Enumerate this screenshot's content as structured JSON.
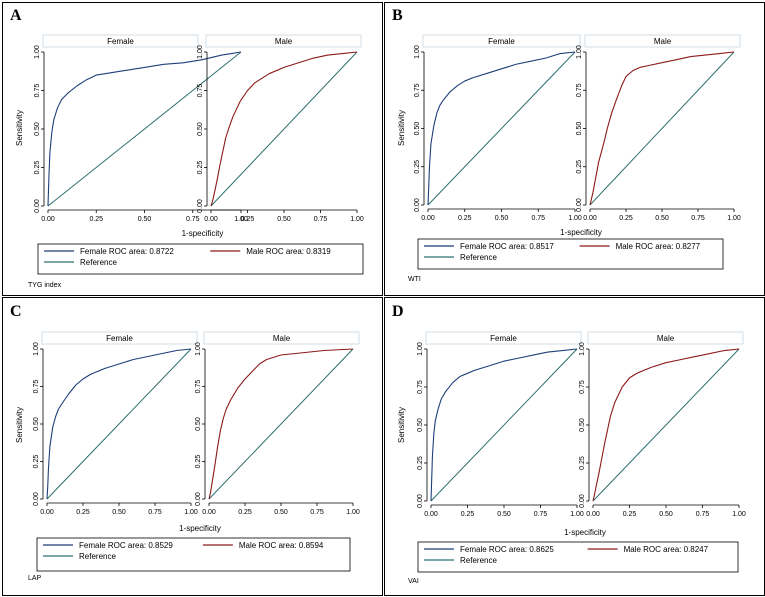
{
  "chart_data": [
    {
      "panel_letter": "A",
      "type": "line",
      "subplots": [
        "Female",
        "Male"
      ],
      "xlabel": "1-specificity",
      "ylabel": "Sensitivity",
      "xlim": [
        0,
        1
      ],
      "ylim": [
        0,
        1
      ],
      "x_ticks": [
        "0.00",
        "0.25",
        "0.50",
        "0.75",
        "1.00"
      ],
      "y_ticks": [
        "0.00",
        "0.25",
        "0.50",
        "0.75",
        "1.00"
      ],
      "note": "TYG index",
      "legend": [
        "Female ROC area: 0.8722",
        "Male ROC area: 0.8319",
        "Reference"
      ],
      "series": [
        {
          "name": "Female",
          "color": "#1f3f7a",
          "auc": 0.8722,
          "x": [
            0,
            0.005,
            0.01,
            0.02,
            0.03,
            0.05,
            0.07,
            0.1,
            0.15,
            0.2,
            0.25,
            0.3,
            0.4,
            0.5,
            0.6,
            0.7,
            0.8,
            0.9,
            0.95,
            1
          ],
          "y": [
            0,
            0.2,
            0.35,
            0.48,
            0.56,
            0.64,
            0.69,
            0.73,
            0.78,
            0.82,
            0.85,
            0.86,
            0.88,
            0.9,
            0.92,
            0.93,
            0.95,
            0.98,
            0.99,
            1
          ]
        },
        {
          "name": "Male",
          "color": "#8b1a1a",
          "auc": 0.8319,
          "x": [
            0,
            0.01,
            0.02,
            0.04,
            0.06,
            0.08,
            0.1,
            0.12,
            0.15,
            0.2,
            0.25,
            0.3,
            0.35,
            0.4,
            0.5,
            0.6,
            0.7,
            0.8,
            0.9,
            1
          ],
          "y": [
            0,
            0.03,
            0.07,
            0.16,
            0.26,
            0.35,
            0.44,
            0.5,
            0.58,
            0.68,
            0.75,
            0.8,
            0.83,
            0.86,
            0.9,
            0.93,
            0.96,
            0.98,
            0.99,
            1
          ]
        },
        {
          "name": "Reference",
          "color": "#2e6f6f",
          "x": [
            0,
            1
          ],
          "y": [
            0,
            1
          ]
        }
      ]
    },
    {
      "panel_letter": "B",
      "type": "line",
      "subplots": [
        "Female",
        "Male"
      ],
      "xlabel": "1-specificity",
      "ylabel": "Sensitivity",
      "xlim": [
        0,
        1
      ],
      "ylim": [
        0,
        1
      ],
      "x_ticks": [
        "0.00",
        "0.25",
        "0.50",
        "0.75",
        "1.00"
      ],
      "y_ticks": [
        "0.00",
        "0.25",
        "0.50",
        "0.75",
        "1.00"
      ],
      "note": "WTI",
      "legend": [
        "Female ROC area: 0.8517",
        "Male ROC area: 0.8277",
        "Reference"
      ],
      "series": [
        {
          "name": "Female",
          "color": "#1f3f7a",
          "auc": 0.8517,
          "x": [
            0,
            0.005,
            0.01,
            0.02,
            0.04,
            0.06,
            0.08,
            0.1,
            0.15,
            0.2,
            0.25,
            0.3,
            0.4,
            0.5,
            0.6,
            0.7,
            0.8,
            0.9,
            1
          ],
          "y": [
            0,
            0.12,
            0.25,
            0.4,
            0.52,
            0.6,
            0.65,
            0.68,
            0.74,
            0.78,
            0.81,
            0.83,
            0.86,
            0.89,
            0.92,
            0.94,
            0.96,
            0.99,
            1
          ]
        },
        {
          "name": "Male",
          "color": "#8b1a1a",
          "auc": 0.8277,
          "x": [
            0,
            0.02,
            0.04,
            0.06,
            0.08,
            0.1,
            0.12,
            0.15,
            0.18,
            0.2,
            0.22,
            0.25,
            0.3,
            0.35,
            0.4,
            0.5,
            0.6,
            0.7,
            0.8,
            0.9,
            1
          ],
          "y": [
            0,
            0.08,
            0.18,
            0.28,
            0.35,
            0.42,
            0.5,
            0.6,
            0.68,
            0.73,
            0.78,
            0.84,
            0.88,
            0.9,
            0.91,
            0.93,
            0.95,
            0.97,
            0.98,
            0.99,
            1
          ]
        },
        {
          "name": "Reference",
          "color": "#2e6f6f",
          "x": [
            0,
            1
          ],
          "y": [
            0,
            1
          ]
        }
      ]
    },
    {
      "panel_letter": "C",
      "type": "line",
      "subplots": [
        "Female",
        "Male"
      ],
      "xlabel": "1-specificity",
      "ylabel": "Sensitivity",
      "xlim": [
        0,
        1
      ],
      "ylim": [
        0,
        1
      ],
      "x_ticks": [
        "0.00",
        "0.25",
        "0.50",
        "0.75",
        "1.00"
      ],
      "y_ticks": [
        "0.00",
        "0.25",
        "0.50",
        "0.75",
        "1.00"
      ],
      "note": "LAP",
      "legend": [
        "Female ROC area: 0.8529",
        "Male ROC area: 0.8594",
        "Reference"
      ],
      "series": [
        {
          "name": "Female",
          "color": "#1f3f7a",
          "auc": 0.8529,
          "x": [
            0,
            0.005,
            0.01,
            0.02,
            0.04,
            0.06,
            0.08,
            0.1,
            0.15,
            0.2,
            0.25,
            0.3,
            0.4,
            0.5,
            0.6,
            0.7,
            0.8,
            0.9,
            1
          ],
          "y": [
            0,
            0.08,
            0.2,
            0.35,
            0.48,
            0.55,
            0.6,
            0.63,
            0.7,
            0.76,
            0.8,
            0.83,
            0.87,
            0.9,
            0.93,
            0.95,
            0.97,
            0.99,
            1
          ]
        },
        {
          "name": "Male",
          "color": "#8b1a1a",
          "auc": 0.8594,
          "x": [
            0,
            0.01,
            0.02,
            0.04,
            0.06,
            0.08,
            0.1,
            0.12,
            0.15,
            0.2,
            0.25,
            0.3,
            0.35,
            0.4,
            0.5,
            0.6,
            0.7,
            0.8,
            0.9,
            1
          ],
          "y": [
            0,
            0.04,
            0.1,
            0.22,
            0.35,
            0.46,
            0.54,
            0.6,
            0.66,
            0.74,
            0.8,
            0.85,
            0.9,
            0.93,
            0.96,
            0.97,
            0.98,
            0.99,
            0.995,
            1
          ]
        },
        {
          "name": "Reference",
          "color": "#2e6f6f",
          "x": [
            0,
            1
          ],
          "y": [
            0,
            1
          ]
        }
      ]
    },
    {
      "panel_letter": "D",
      "type": "line",
      "subplots": [
        "Female",
        "Male"
      ],
      "xlabel": "1-specificity",
      "ylabel": "Sensitivity",
      "xlim": [
        0,
        1
      ],
      "ylim": [
        0,
        1
      ],
      "x_ticks": [
        "0.00",
        "0.25",
        "0.50",
        "0.75",
        "1.00"
      ],
      "y_ticks": [
        "0.00",
        "0.25",
        "0.50",
        "0.75",
        "1.00"
      ],
      "note": "VAI",
      "legend": [
        "Female ROC area: 0.8625",
        "Male ROC area: 0.8247",
        "Reference"
      ],
      "series": [
        {
          "name": "Female",
          "color": "#1f3f7a",
          "auc": 0.8625,
          "x": [
            0,
            0.005,
            0.01,
            0.02,
            0.03,
            0.05,
            0.07,
            0.1,
            0.15,
            0.2,
            0.25,
            0.3,
            0.4,
            0.5,
            0.6,
            0.7,
            0.8,
            0.9,
            1
          ],
          "y": [
            0,
            0.15,
            0.3,
            0.45,
            0.53,
            0.61,
            0.67,
            0.72,
            0.78,
            0.82,
            0.84,
            0.86,
            0.89,
            0.92,
            0.94,
            0.96,
            0.98,
            0.99,
            1
          ]
        },
        {
          "name": "Male",
          "color": "#8b1a1a",
          "auc": 0.8247,
          "x": [
            0,
            0.01,
            0.02,
            0.04,
            0.06,
            0.08,
            0.1,
            0.12,
            0.15,
            0.2,
            0.25,
            0.3,
            0.35,
            0.4,
            0.5,
            0.6,
            0.7,
            0.8,
            0.9,
            1
          ],
          "y": [
            0,
            0.04,
            0.09,
            0.18,
            0.28,
            0.38,
            0.47,
            0.56,
            0.65,
            0.75,
            0.81,
            0.84,
            0.86,
            0.88,
            0.91,
            0.93,
            0.95,
            0.97,
            0.99,
            1
          ]
        },
        {
          "name": "Reference",
          "color": "#2e6f6f",
          "x": [
            0,
            1
          ],
          "y": [
            0,
            1
          ]
        }
      ]
    }
  ]
}
